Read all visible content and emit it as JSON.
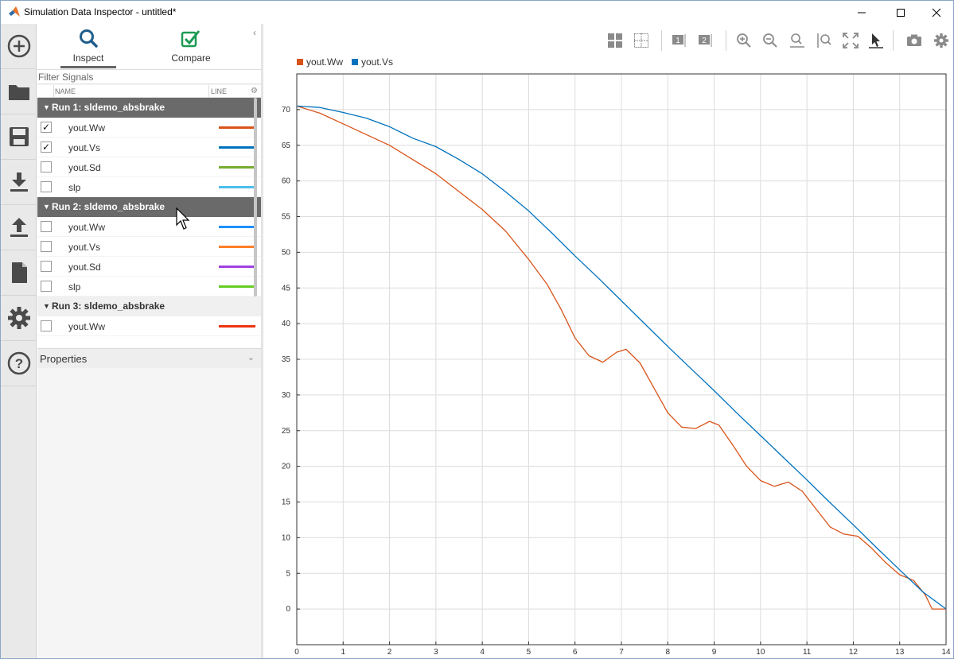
{
  "window": {
    "title": "Simulation Data Inspector - untitled*",
    "logo_icon": "matlab-logo-icon"
  },
  "rail": [
    {
      "name": "add-icon"
    },
    {
      "name": "folder-icon"
    },
    {
      "name": "save-icon"
    },
    {
      "name": "download-icon"
    },
    {
      "name": "upload-icon"
    },
    {
      "name": "document-icon"
    },
    {
      "name": "settings-gear-icon"
    },
    {
      "name": "help-icon"
    }
  ],
  "tabs": {
    "inspect": "Inspect",
    "compare": "Compare"
  },
  "filter": {
    "placeholder": "Filter Signals"
  },
  "columns": {
    "name": "NAME",
    "line": "LINE"
  },
  "runs": [
    {
      "label": "Run 1: sldemo_absbrake",
      "signals": [
        {
          "name": "yout.Ww",
          "checked": "✓",
          "color": "#d95319"
        },
        {
          "name": "yout.Vs",
          "checked": "✓",
          "color": "#0072bd"
        },
        {
          "name": "yout.Sd",
          "checked": "",
          "color": "#77ac30"
        },
        {
          "name": "slp",
          "checked": "",
          "color": "#4dbeee"
        }
      ]
    },
    {
      "label": "Run 2: sldemo_absbrake",
      "signals": [
        {
          "name": "yout.Ww",
          "checked": "",
          "color": "#1e90ff"
        },
        {
          "name": "yout.Vs",
          "checked": "",
          "color": "#ff7f2a"
        },
        {
          "name": "yout.Sd",
          "checked": "",
          "color": "#a040e0"
        },
        {
          "name": "slp",
          "checked": "",
          "color": "#66cc22"
        }
      ]
    },
    {
      "label": "Run 3: sldemo_absbrake",
      "signals": [
        {
          "name": "yout.Ww",
          "checked": "",
          "color": "#ee3311"
        }
      ]
    }
  ],
  "properties": {
    "label": "Properties"
  },
  "chart_data": {
    "type": "line",
    "xlim": [
      0,
      14
    ],
    "ylim": [
      -5,
      75
    ],
    "xticks": [
      0,
      1,
      2,
      3,
      4,
      5,
      6,
      7,
      8,
      9,
      10,
      11,
      12,
      13,
      14
    ],
    "yticks": [
      0,
      5,
      10,
      15,
      20,
      25,
      30,
      35,
      40,
      45,
      50,
      55,
      60,
      65,
      70
    ],
    "grid": true,
    "legend_position": "top-left",
    "series": [
      {
        "name": "yout.Ww",
        "color": "#d95319",
        "x": [
          0,
          0.5,
          1,
          1.5,
          2,
          2.5,
          3,
          3.5,
          4,
          4.5,
          5,
          5.4,
          5.7,
          6.0,
          6.3,
          6.6,
          6.9,
          7.1,
          7.4,
          7.7,
          8.0,
          8.3,
          8.6,
          8.9,
          9.1,
          9.4,
          9.7,
          10.0,
          10.3,
          10.6,
          10.9,
          11.2,
          11.5,
          11.8,
          12.1,
          12.4,
          12.7,
          13.0,
          13.3,
          13.55,
          13.7,
          14.0
        ],
        "y": [
          70.5,
          69.5,
          68.0,
          66.5,
          65.0,
          63.0,
          61.0,
          58.5,
          56.0,
          53.0,
          49.0,
          45.5,
          42.0,
          38.0,
          35.5,
          34.6,
          36.0,
          36.4,
          34.5,
          31.0,
          27.5,
          25.5,
          25.3,
          26.3,
          25.8,
          23.0,
          20.0,
          18.0,
          17.2,
          17.8,
          16.5,
          14.0,
          11.5,
          10.5,
          10.2,
          8.5,
          6.5,
          4.8,
          4.0,
          2.0,
          0.0,
          0.0
        ]
      },
      {
        "name": "yout.Vs",
        "color": "#0072bd",
        "x": [
          0,
          0.5,
          1,
          1.5,
          2,
          2.5,
          3,
          3.5,
          4,
          4.5,
          5,
          5.5,
          6,
          6.5,
          7,
          7.5,
          8,
          8.5,
          9,
          9.5,
          10,
          10.5,
          11,
          11.5,
          12,
          12.5,
          13,
          13.5,
          14
        ],
        "y": [
          70.5,
          70.3,
          69.6,
          68.8,
          67.6,
          66.0,
          64.8,
          63.0,
          61.0,
          58.5,
          55.8,
          52.7,
          49.5,
          46.4,
          43.2,
          40.0,
          36.8,
          33.7,
          30.6,
          27.4,
          24.3,
          21.2,
          18.1,
          14.9,
          11.8,
          8.6,
          5.5,
          2.4,
          0.0
        ]
      }
    ]
  },
  "toolbar": [
    "layout-grid-icon",
    "cursor-grid-icon",
    "cursor-one-icon",
    "cursor-two-icon",
    "zoom-in-icon",
    "zoom-out-icon",
    "zoom-x-icon",
    "zoom-y-icon",
    "fit-to-view-icon",
    "select-pointer-icon",
    "snapshot-camera-icon",
    "visual-settings-icon"
  ]
}
